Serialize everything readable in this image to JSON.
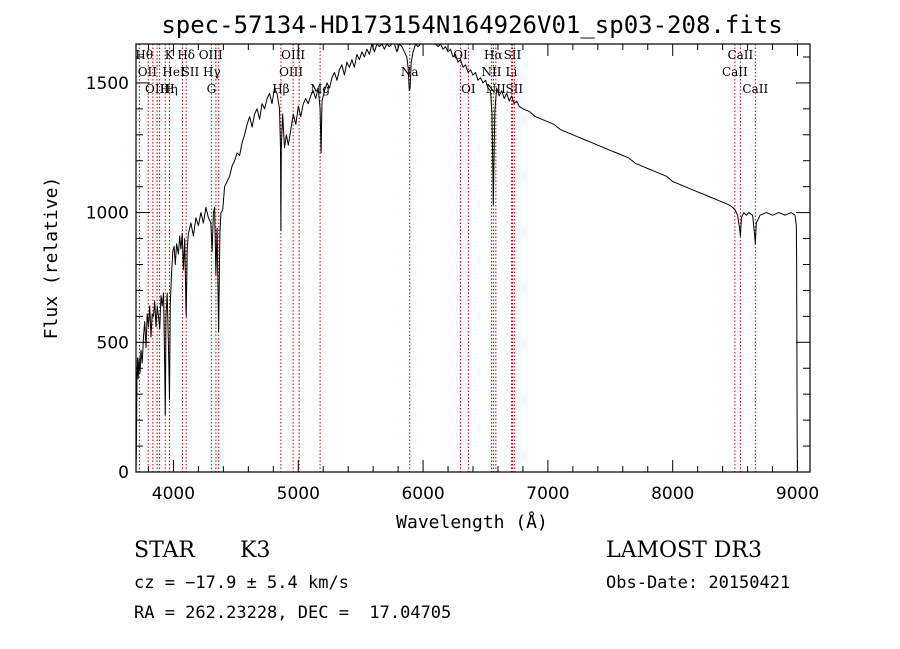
{
  "chart_data": {
    "type": "line",
    "title": "spec-57134-HD173154N164926V01_sp03-208.fits",
    "xlabel": "Wavelength (Å)",
    "ylabel": "Flux (relative)",
    "xlim": [
      3700,
      9100
    ],
    "ylim": [
      0,
      1650
    ],
    "x_ticks": [
      4000,
      5000,
      6000,
      7000,
      8000,
      9000
    ],
    "y_ticks": [
      0,
      500,
      1000,
      1500
    ],
    "grid": false,
    "series": [
      {
        "line_color": "#000000",
        "points": [
          [
            3700,
            0
          ],
          [
            3703,
            90
          ],
          [
            3708,
            380
          ],
          [
            3712,
            440
          ],
          [
            3718,
            360
          ],
          [
            3725,
            440
          ],
          [
            3732,
            380
          ],
          [
            3740,
            470
          ],
          [
            3750,
            420
          ],
          [
            3760,
            520
          ],
          [
            3770,
            580
          ],
          [
            3780,
            480
          ],
          [
            3790,
            610
          ],
          [
            3800,
            560
          ],
          [
            3810,
            640
          ],
          [
            3820,
            520
          ],
          [
            3830,
            610
          ],
          [
            3840,
            600
          ],
          [
            3850,
            660
          ],
          [
            3860,
            560
          ],
          [
            3870,
            640
          ],
          [
            3880,
            600
          ],
          [
            3890,
            550
          ],
          [
            3900,
            680
          ],
          [
            3910,
            640
          ],
          [
            3920,
            690
          ],
          [
            3925,
            560
          ],
          [
            3930,
            400
          ],
          [
            3935,
            220
          ],
          [
            3940,
            600
          ],
          [
            3950,
            690
          ],
          [
            3960,
            480
          ],
          [
            3968,
            280
          ],
          [
            3975,
            650
          ],
          [
            3985,
            770
          ],
          [
            3995,
            850
          ],
          [
            4005,
            870
          ],
          [
            4015,
            800
          ],
          [
            4025,
            880
          ],
          [
            4040,
            840
          ],
          [
            4050,
            910
          ],
          [
            4060,
            860
          ],
          [
            4070,
            920
          ],
          [
            4080,
            780
          ],
          [
            4090,
            900
          ],
          [
            4100,
            640
          ],
          [
            4102,
            600
          ],
          [
            4110,
            860
          ],
          [
            4120,
            920
          ],
          [
            4140,
            960
          ],
          [
            4160,
            910
          ],
          [
            4180,
            980
          ],
          [
            4200,
            950
          ],
          [
            4220,
            1000
          ],
          [
            4240,
            960
          ],
          [
            4260,
            1020
          ],
          [
            4280,
            980
          ],
          [
            4300,
            960
          ],
          [
            4310,
            850
          ],
          [
            4320,
            1000
          ],
          [
            4330,
            1020
          ],
          [
            4340,
            760
          ],
          [
            4350,
            940
          ],
          [
            4362,
            540
          ],
          [
            4372,
            920
          ],
          [
            4380,
            1000
          ],
          [
            4395,
            1010
          ],
          [
            4410,
            1100
          ],
          [
            4430,
            1120
          ],
          [
            4450,
            1140
          ],
          [
            4470,
            1180
          ],
          [
            4490,
            1200
          ],
          [
            4510,
            1230
          ],
          [
            4530,
            1220
          ],
          [
            4550,
            1270
          ],
          [
            4570,
            1300
          ],
          [
            4590,
            1340
          ],
          [
            4610,
            1370
          ],
          [
            4630,
            1330
          ],
          [
            4650,
            1380
          ],
          [
            4670,
            1400
          ],
          [
            4690,
            1360
          ],
          [
            4710,
            1420
          ],
          [
            4730,
            1400
          ],
          [
            4750,
            1440
          ],
          [
            4770,
            1460
          ],
          [
            4790,
            1420
          ],
          [
            4810,
            1480
          ],
          [
            4830,
            1460
          ],
          [
            4850,
            1400
          ],
          [
            4858,
            1250
          ],
          [
            4861,
            930
          ],
          [
            4864,
            1250
          ],
          [
            4875,
            1380
          ],
          [
            4890,
            1250
          ],
          [
            4905,
            1300
          ],
          [
            4920,
            1260
          ],
          [
            4940,
            1320
          ],
          [
            4960,
            1380
          ],
          [
            4980,
            1340
          ],
          [
            5000,
            1410
          ],
          [
            5020,
            1370
          ],
          [
            5040,
            1420
          ],
          [
            5060,
            1440
          ],
          [
            5080,
            1420
          ],
          [
            5100,
            1450
          ],
          [
            5120,
            1470
          ],
          [
            5140,
            1440
          ],
          [
            5160,
            1480
          ],
          [
            5175,
            1400
          ],
          [
            5183,
            1230
          ],
          [
            5190,
            1430
          ],
          [
            5210,
            1470
          ],
          [
            5230,
            1500
          ],
          [
            5250,
            1480
          ],
          [
            5270,
            1520
          ],
          [
            5290,
            1540
          ],
          [
            5310,
            1510
          ],
          [
            5330,
            1550
          ],
          [
            5350,
            1570
          ],
          [
            5370,
            1530
          ],
          [
            5390,
            1580
          ],
          [
            5410,
            1560
          ],
          [
            5430,
            1590
          ],
          [
            5450,
            1560
          ],
          [
            5470,
            1610
          ],
          [
            5490,
            1590
          ],
          [
            5510,
            1620
          ],
          [
            5530,
            1600
          ],
          [
            5550,
            1630
          ],
          [
            5570,
            1610
          ],
          [
            5590,
            1650
          ],
          [
            5610,
            1620
          ],
          [
            5630,
            1660
          ],
          [
            5650,
            1640
          ],
          [
            5670,
            1670
          ],
          [
            5690,
            1630
          ],
          [
            5710,
            1660
          ],
          [
            5730,
            1640
          ],
          [
            5750,
            1670
          ],
          [
            5770,
            1650
          ],
          [
            5790,
            1620
          ],
          [
            5810,
            1660
          ],
          [
            5830,
            1640
          ],
          [
            5850,
            1620
          ],
          [
            5870,
            1600
          ],
          [
            5880,
            1560
          ],
          [
            5890,
            1470
          ],
          [
            5896,
            1480
          ],
          [
            5905,
            1580
          ],
          [
            5920,
            1620
          ],
          [
            5940,
            1650
          ],
          [
            5960,
            1640
          ],
          [
            5980,
            1680
          ],
          [
            6000,
            1660
          ],
          [
            6020,
            1690
          ],
          [
            6040,
            1660
          ],
          [
            6060,
            1650
          ],
          [
            6080,
            1680
          ],
          [
            6100,
            1660
          ],
          [
            6120,
            1640
          ],
          [
            6140,
            1650
          ],
          [
            6160,
            1630
          ],
          [
            6180,
            1640
          ],
          [
            6200,
            1620
          ],
          [
            6220,
            1630
          ],
          [
            6240,
            1600
          ],
          [
            6260,
            1610
          ],
          [
            6280,
            1580
          ],
          [
            6300,
            1590
          ],
          [
            6320,
            1560
          ],
          [
            6340,
            1570
          ],
          [
            6360,
            1540
          ],
          [
            6380,
            1550
          ],
          [
            6400,
            1530
          ],
          [
            6420,
            1540
          ],
          [
            6440,
            1510
          ],
          [
            6460,
            1520
          ],
          [
            6480,
            1500
          ],
          [
            6500,
            1510
          ],
          [
            6520,
            1480
          ],
          [
            6540,
            1470
          ],
          [
            6552,
            1380
          ],
          [
            6558,
            1200
          ],
          [
            6563,
            1030
          ],
          [
            6568,
            1200
          ],
          [
            6575,
            1390
          ],
          [
            6590,
            1480
          ],
          [
            6610,
            1450
          ],
          [
            6630,
            1470
          ],
          [
            6650,
            1440
          ],
          [
            6670,
            1460
          ],
          [
            6690,
            1430
          ],
          [
            6710,
            1450
          ],
          [
            6730,
            1420
          ],
          [
            6750,
            1430
          ],
          [
            6770,
            1410
          ],
          [
            6800,
            1400
          ],
          [
            6850,
            1390
          ],
          [
            6900,
            1370
          ],
          [
            6950,
            1360
          ],
          [
            7000,
            1350
          ],
          [
            7050,
            1340
          ],
          [
            7100,
            1320
          ],
          [
            7150,
            1310
          ],
          [
            7200,
            1300
          ],
          [
            7250,
            1290
          ],
          [
            7300,
            1280
          ],
          [
            7350,
            1270
          ],
          [
            7400,
            1260
          ],
          [
            7450,
            1250
          ],
          [
            7500,
            1240
          ],
          [
            7550,
            1230
          ],
          [
            7600,
            1220
          ],
          [
            7650,
            1210
          ],
          [
            7700,
            1190
          ],
          [
            7750,
            1180
          ],
          [
            7800,
            1170
          ],
          [
            7850,
            1160
          ],
          [
            7900,
            1150
          ],
          [
            7950,
            1140
          ],
          [
            8000,
            1120
          ],
          [
            8050,
            1110
          ],
          [
            8100,
            1100
          ],
          [
            8150,
            1090
          ],
          [
            8200,
            1080
          ],
          [
            8250,
            1070
          ],
          [
            8300,
            1060
          ],
          [
            8350,
            1050
          ],
          [
            8400,
            1040
          ],
          [
            8450,
            1030
          ],
          [
            8480,
            1020
          ],
          [
            8500,
            1010
          ],
          [
            8520,
            990
          ],
          [
            8535,
            940
          ],
          [
            8542,
            910
          ],
          [
            8550,
            980
          ],
          [
            8570,
            1000
          ],
          [
            8590,
            990
          ],
          [
            8610,
            1000
          ],
          [
            8640,
            990
          ],
          [
            8655,
            920
          ],
          [
            8662,
            880
          ],
          [
            8670,
            960
          ],
          [
            8700,
            990
          ],
          [
            8750,
            1000
          ],
          [
            8800,
            990
          ],
          [
            8850,
            1000
          ],
          [
            8900,
            990
          ],
          [
            8950,
            1000
          ],
          [
            8980,
            990
          ],
          [
            8990,
            950
          ],
          [
            8993,
            830
          ],
          [
            8995,
            500
          ],
          [
            8997,
            180
          ],
          [
            8999,
            0
          ]
        ]
      }
    ],
    "lines": [
      {
        "name": "Hθ",
        "wl": 3798,
        "row": 0,
        "dx": -4
      },
      {
        "name": "OII",
        "wl": 3727,
        "row": 1,
        "dx": 8
      },
      {
        "name": "OIII",
        "wl": 3869,
        "row": 2,
        "dx": 0
      },
      {
        "name": "K",
        "wl": 3934,
        "row": 0,
        "dx": 4
      },
      {
        "name": "HeI",
        "wl": 3889,
        "row": 1,
        "dx": 14
      },
      {
        "name": "Hη",
        "wl": 3835,
        "row": 2,
        "dx": 16
      },
      {
        "name": "H",
        "wl": 3968,
        "row": 2,
        "dx": 0
      },
      {
        "name": "Hδ",
        "wl": 4102,
        "row": 0,
        "dx": 0
      },
      {
        "name": "SII",
        "wl": 4072,
        "row": 1,
        "dx": 8
      },
      {
        "name": "OIII",
        "wl": 4363,
        "row": 0,
        "dx": -8
      },
      {
        "name": "Hγ",
        "wl": 4340,
        "row": 1,
        "dx": -4
      },
      {
        "name": "G",
        "wl": 4304,
        "row": 2,
        "dx": 0
      },
      {
        "name": "Hβ",
        "wl": 4861,
        "row": 2,
        "dx": 0
      },
      {
        "name": "OIII",
        "wl": 4959,
        "row": 0,
        "dx": 0
      },
      {
        "name": "OIII",
        "wl": 5007,
        "row": 1,
        "dx": -8
      },
      {
        "name": "Mg",
        "wl": 5175,
        "row": 2,
        "dx": 0
      },
      {
        "name": "Na",
        "wl": 5893,
        "row": 1,
        "dx": 0
      },
      {
        "name": "OI",
        "wl": 6300,
        "row": 0,
        "dx": 0
      },
      {
        "name": "OI",
        "wl": 6363,
        "row": 2,
        "dx": 0
      },
      {
        "name": "Hα",
        "wl": 6563,
        "row": 0,
        "dx": 0
      },
      {
        "name": "NII",
        "wl": 6548,
        "row": 1,
        "dx": 0
      },
      {
        "name": "NII",
        "wl": 6583,
        "row": 2,
        "dx": 0
      },
      {
        "name": "SII",
        "wl": 6716,
        "row": 0,
        "dx": 0
      },
      {
        "name": "Li",
        "wl": 6708,
        "row": 1,
        "dx": 0
      },
      {
        "name": "SII",
        "wl": 6731,
        "row": 2,
        "dx": 0
      },
      {
        "name": "CaII",
        "wl": 8542,
        "row": 0,
        "dx": 0
      },
      {
        "name": "CaII",
        "wl": 8498,
        "row": 1,
        "dx": 0
      },
      {
        "name": "CaII",
        "wl": 8662,
        "row": 2,
        "dx": 0
      }
    ]
  },
  "info": {
    "class_label": "STAR",
    "subclass": "K3",
    "survey": "LAMOST DR3",
    "cz": "cz = −17.9 ± 5.4 km/s",
    "obs_date": "Obs-Date: 20150421",
    "coords": "RA = 262.23228, DEC =  17.04705"
  }
}
